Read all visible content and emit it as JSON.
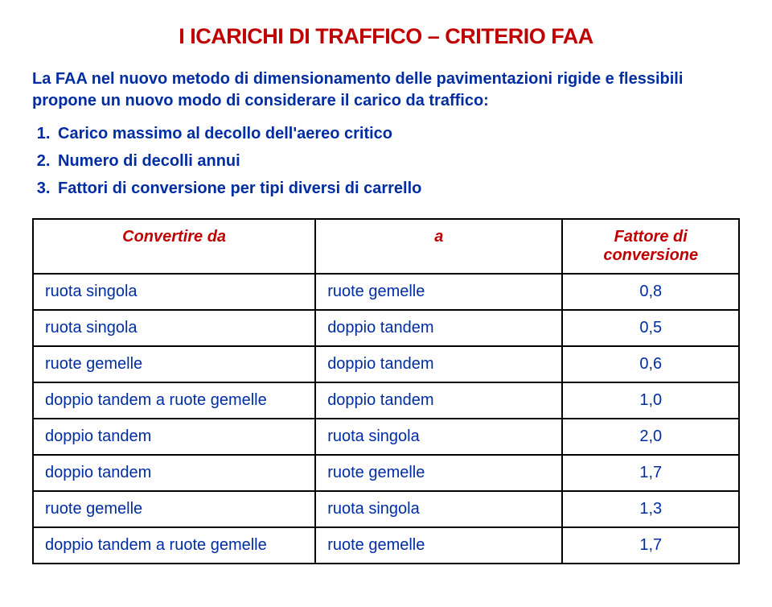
{
  "title": "I ICARICHI DI TRAFFICO – CRITERIO FAA",
  "title_color": "#c00000",
  "title_fontsize": 27,
  "intro": "La FAA nel nuovo metodo di dimensionamento delle pavimentazioni rigide e flessibili propone un nuovo modo di considerare il carico da traffico:",
  "intro_color": "#002da2",
  "intro_fontsize": 20,
  "list": {
    "items": [
      "Carico massimo al decollo dell'aereo critico",
      "Numero di decolli annui",
      "Fattori di conversione per tipi diversi di carrello"
    ],
    "color": "#002da2",
    "fontsize": 20
  },
  "table": {
    "header_color": "#c00000",
    "body_color": "#002da2",
    "fontsize": 20,
    "columns": [
      "Convertire da",
      "a",
      "Fattore di conversione"
    ],
    "col_widths": [
      "40%",
      "35%",
      "25%"
    ],
    "rows": [
      [
        "ruota singola",
        "ruote gemelle",
        "0,8"
      ],
      [
        "ruota singola",
        "doppio tandem",
        "0,5"
      ],
      [
        "ruote gemelle",
        "doppio tandem",
        "0,6"
      ],
      [
        "doppio tandem a ruote gemelle",
        "doppio tandem",
        "1,0"
      ],
      [
        "doppio tandem",
        "ruota singola",
        "2,0"
      ],
      [
        "doppio tandem",
        "ruote gemelle",
        "1,7"
      ],
      [
        "ruote gemelle",
        "ruota singola",
        "1,3"
      ],
      [
        "doppio tandem a ruote gemelle",
        "ruote gemelle",
        "1,7"
      ]
    ]
  }
}
